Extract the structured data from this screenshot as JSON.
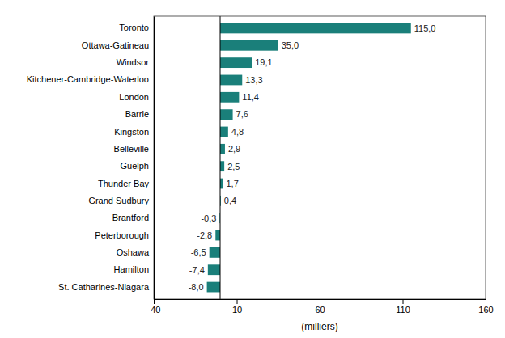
{
  "chart_data": {
    "type": "bar",
    "orientation": "horizontal",
    "categories": [
      "St. Catharines-Niagara",
      "Hamilton",
      "Oshawa",
      "Peterborough",
      "Brantford",
      "Grand Sudbury",
      "Thunder Bay",
      "Guelph",
      "Belleville",
      "Kingston",
      "Barrie",
      "London",
      "Kitchener-Cambridge-Waterloo",
      "Windsor",
      "Ottawa-Gatineau",
      "Toronto"
    ],
    "values": [
      -8.0,
      -7.4,
      -6.5,
      -2.8,
      -0.3,
      0.4,
      1.7,
      2.5,
      2.9,
      4.8,
      7.6,
      11.4,
      13.3,
      19.1,
      35.0,
      115.0
    ],
    "value_labels": [
      "-8,0",
      "-7,4",
      "-6,5",
      "-2,8",
      "-0,3",
      "0,4",
      "1,7",
      "2,5",
      "2,9",
      "4,8",
      "7,6",
      "11,4",
      "13,3",
      "19,1",
      "35,0",
      "115,0"
    ],
    "data_labels": true,
    "color": "#1a7f7a",
    "xlim": [
      -40,
      160
    ],
    "xticks": [
      -40,
      10,
      60,
      110,
      160
    ],
    "xlabel": "(milliers)",
    "grid": false
  }
}
